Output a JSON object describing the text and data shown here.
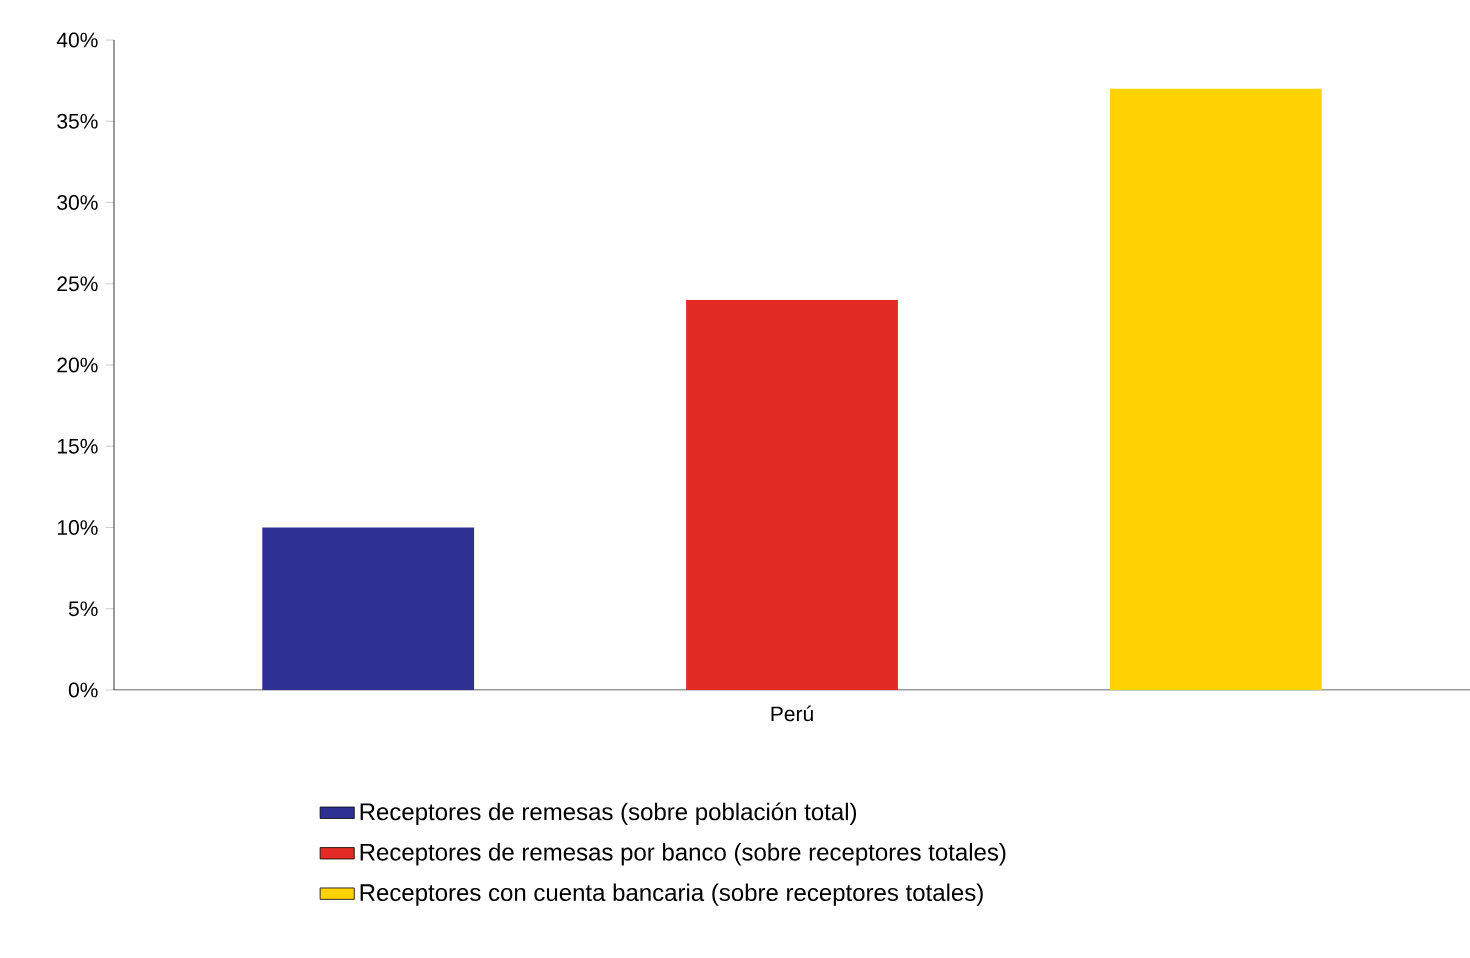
{
  "chart_data": {
    "type": "bar",
    "categories": [
      "Perú"
    ],
    "series": [
      {
        "name": "Receptores de remesas (sobre población total)",
        "color": "#2e3192",
        "values": [
          10
        ]
      },
      {
        "name": "Receptores de remesas por banco (sobre receptores totales)",
        "color": "#e32b26",
        "values": [
          24
        ]
      },
      {
        "name": "Receptores con cuenta bancaria (sobre receptores totales)",
        "color": "#ffd200",
        "values": [
          37
        ]
      }
    ],
    "ylim": [
      0,
      40
    ],
    "yticks": [
      {
        "value": 0,
        "label": "0%"
      },
      {
        "value": 5,
        "label": "5%"
      },
      {
        "value": 10,
        "label": "10%"
      },
      {
        "value": 15,
        "label": "15%"
      },
      {
        "value": 20,
        "label": "20%"
      },
      {
        "value": 25,
        "label": "25%"
      },
      {
        "value": 30,
        "label": "30%"
      },
      {
        "value": 35,
        "label": "35%"
      },
      {
        "value": 40,
        "label": "40%"
      }
    ],
    "legend": "bottom"
  }
}
